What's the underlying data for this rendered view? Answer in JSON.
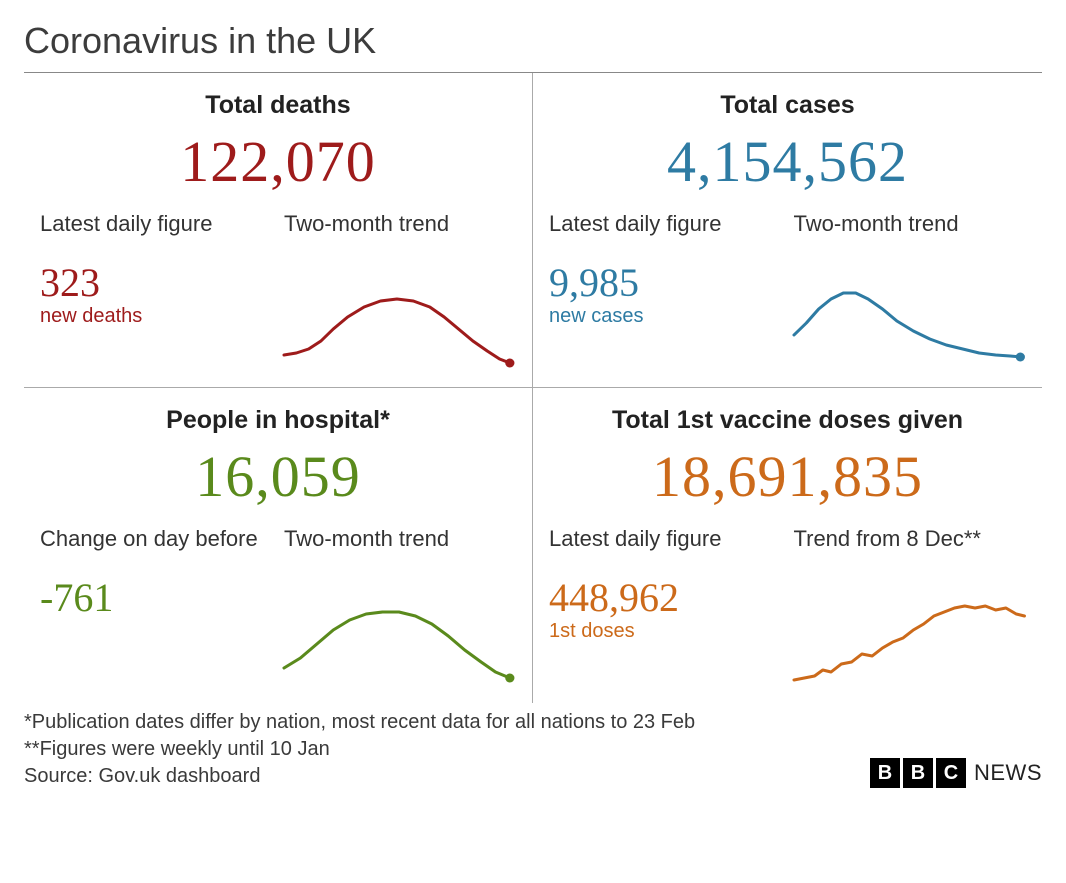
{
  "title": "Coronavirus in the UK",
  "panels": {
    "deaths": {
      "title": "Total deaths",
      "big_value": "122,070",
      "color": "#9e1b1b",
      "left_label": "Latest daily figure",
      "left_value": "323",
      "left_caption": "new deaths",
      "right_label": "Two-month trend",
      "spark": {
        "stroke": "#9e1b1b",
        "stroke_width": 3,
        "end_dot": true,
        "points": [
          [
            0,
            72
          ],
          [
            12,
            70
          ],
          [
            24,
            66
          ],
          [
            36,
            58
          ],
          [
            48,
            46
          ],
          [
            62,
            34
          ],
          [
            78,
            24
          ],
          [
            94,
            18
          ],
          [
            110,
            16
          ],
          [
            126,
            18
          ],
          [
            142,
            24
          ],
          [
            156,
            34
          ],
          [
            170,
            46
          ],
          [
            184,
            58
          ],
          [
            198,
            68
          ],
          [
            210,
            76
          ],
          [
            220,
            80
          ]
        ]
      }
    },
    "cases": {
      "title": "Total cases",
      "big_value": "4,154,562",
      "color": "#2e7ba3",
      "left_label": "Latest daily figure",
      "left_value": "9,985",
      "left_caption": "new cases",
      "right_label": "Two-month trend",
      "spark": {
        "stroke": "#2e7ba3",
        "stroke_width": 3,
        "end_dot": true,
        "points": [
          [
            0,
            52
          ],
          [
            12,
            40
          ],
          [
            24,
            26
          ],
          [
            36,
            16
          ],
          [
            48,
            10
          ],
          [
            60,
            10
          ],
          [
            72,
            16
          ],
          [
            86,
            26
          ],
          [
            100,
            38
          ],
          [
            116,
            48
          ],
          [
            132,
            56
          ],
          [
            148,
            62
          ],
          [
            164,
            66
          ],
          [
            180,
            70
          ],
          [
            196,
            72
          ],
          [
            210,
            73
          ],
          [
            220,
            74
          ]
        ]
      }
    },
    "hospital": {
      "title": "People in hospital*",
      "big_value": "16,059",
      "color": "#5a8a1c",
      "left_label": "Change on day before",
      "left_value": "-761",
      "left_caption": "",
      "right_label": "Two-month trend",
      "spark": {
        "stroke": "#5a8a1c",
        "stroke_width": 3,
        "end_dot": true,
        "points": [
          [
            0,
            70
          ],
          [
            16,
            60
          ],
          [
            32,
            46
          ],
          [
            48,
            32
          ],
          [
            64,
            22
          ],
          [
            80,
            16
          ],
          [
            96,
            14
          ],
          [
            112,
            14
          ],
          [
            128,
            18
          ],
          [
            144,
            26
          ],
          [
            160,
            38
          ],
          [
            176,
            52
          ],
          [
            192,
            64
          ],
          [
            206,
            74
          ],
          [
            220,
            80
          ]
        ]
      }
    },
    "vaccines": {
      "title": "Total 1st vaccine doses given",
      "big_value": "18,691,835",
      "color": "#cc6a1a",
      "left_label": "Latest daily figure",
      "left_value": "448,962",
      "left_caption": "1st doses",
      "right_label": "Trend from 8 Dec**",
      "spark": {
        "stroke": "#cc6a1a",
        "stroke_width": 3,
        "end_dot": false,
        "points": [
          [
            0,
            82
          ],
          [
            10,
            80
          ],
          [
            20,
            78
          ],
          [
            28,
            72
          ],
          [
            36,
            74
          ],
          [
            46,
            66
          ],
          [
            56,
            64
          ],
          [
            66,
            56
          ],
          [
            76,
            58
          ],
          [
            86,
            50
          ],
          [
            96,
            44
          ],
          [
            106,
            40
          ],
          [
            116,
            32
          ],
          [
            126,
            26
          ],
          [
            136,
            18
          ],
          [
            146,
            14
          ],
          [
            156,
            10
          ],
          [
            166,
            8
          ],
          [
            176,
            10
          ],
          [
            186,
            8
          ],
          [
            196,
            12
          ],
          [
            206,
            10
          ],
          [
            216,
            16
          ],
          [
            224,
            18
          ]
        ]
      }
    }
  },
  "footnotes": {
    "line1": "*Publication dates differ by nation, most recent data for all nations to 23 Feb",
    "line2": "**Figures were weekly until 10 Jan",
    "source": "Source: Gov.uk dashboard"
  },
  "brand": {
    "blocks": [
      "B",
      "B",
      "C"
    ],
    "label": "NEWS"
  }
}
